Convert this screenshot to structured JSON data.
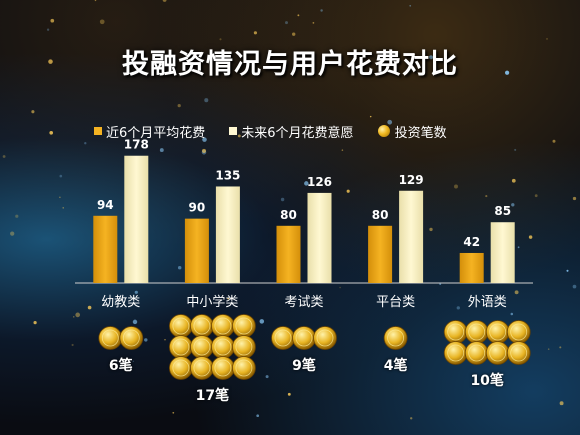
{
  "title": "投融资情况与用户花费对比",
  "legend": {
    "series1": "近6个月平均花费",
    "series2": "未来6个月花费意愿",
    "coins": "投资笔数"
  },
  "colors": {
    "series1": "#f5b322",
    "series2": "#fff8d2",
    "coin": "#e8b423"
  },
  "chart_data": {
    "type": "bar",
    "categories": [
      "幼教类",
      "中小学类",
      "考试类",
      "平台类",
      "外语类"
    ],
    "series": [
      {
        "name": "近6个月平均花费",
        "values": [
          94,
          90,
          80,
          80,
          42
        ]
      },
      {
        "name": "未来6个月花费意愿",
        "values": [
          178,
          135,
          126,
          129,
          85
        ]
      }
    ],
    "investment_counts": [
      6,
      17,
      9,
      4,
      10
    ],
    "investment_count_labels": [
      "6笔",
      "17笔",
      "9笔",
      "4笔",
      "10笔"
    ],
    "coin_icons_shown": [
      2,
      12,
      3,
      1,
      8
    ],
    "ylim": [
      0,
      200
    ],
    "grid": false,
    "legend_position": "top"
  }
}
